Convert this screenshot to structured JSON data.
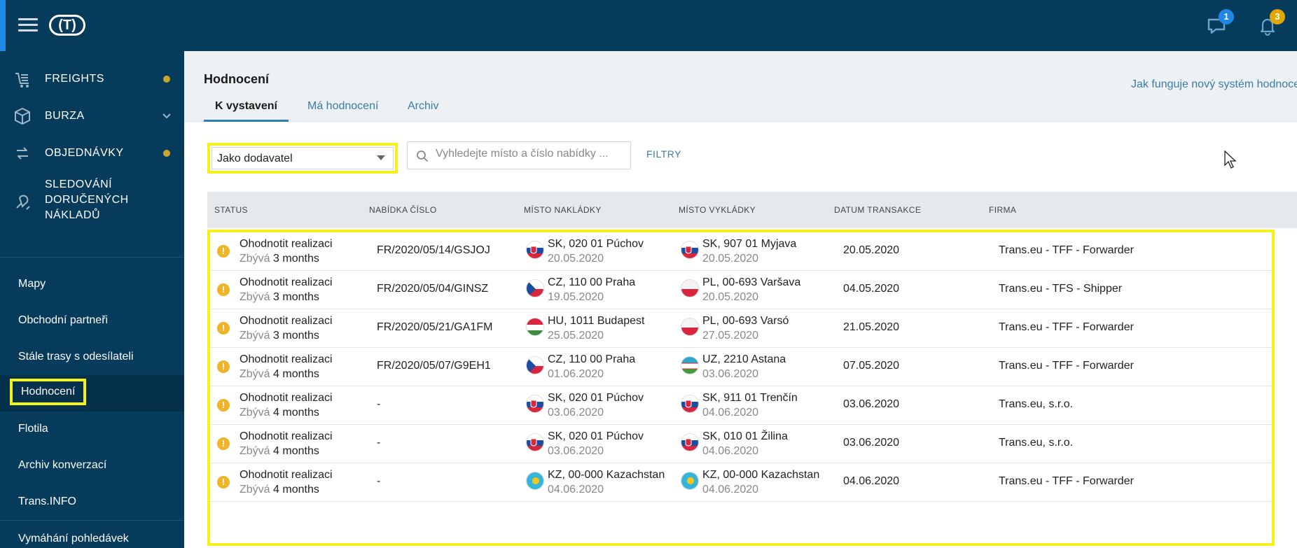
{
  "topbar": {
    "logo_text": "(T)",
    "messages_badge": "1",
    "notifications_badge": "3",
    "colors": {
      "background": "#063b5c",
      "badge_messages": "#1e88e5",
      "badge_notifications": "#e0a800"
    }
  },
  "sidebar": {
    "nav": [
      {
        "label": "FREIGHTS",
        "icon": "freights-icon",
        "indicator": "dot"
      },
      {
        "label": "BURZA",
        "icon": "box-icon",
        "indicator": "chevron"
      },
      {
        "label": "OBJEDNÁVKY",
        "icon": "orders-icon",
        "indicator": "dot"
      },
      {
        "label_lines": [
          "SLEDOVÁNÍ",
          "DORUČENÝCH",
          "NÁKLADŮ"
        ],
        "icon": "tracking-icon"
      }
    ],
    "links": [
      "Mapy",
      "Obchodní partneři",
      "Stále trasy s odesílateli",
      "Hodnocení",
      "Flotila",
      "Archiv konverzací",
      "Trans.INFO",
      "Vymáhání pohledávek"
    ],
    "active_link": "Hodnocení"
  },
  "header": {
    "title": "Hodnocení",
    "help_link": "Jak funguje nový systém hodnocení",
    "tabs": [
      {
        "label": "K vystavení",
        "active": true
      },
      {
        "label": "Má hodnocení",
        "active": false
      },
      {
        "label": "Archiv",
        "active": false
      }
    ]
  },
  "filters": {
    "role_select": "Jako dodavatel",
    "search_placeholder": "Vyhledejte místo a číslo nabídky ...",
    "filters_button": "FILTRY"
  },
  "table": {
    "columns": [
      "STATUS",
      "NABÍDKA ČÍSLO",
      "MÍSTO NAKLÁDKY",
      "MÍSTO VYKLÁDKY",
      "DATUM TRANSAKCE",
      "FIRMA"
    ],
    "remaining_prefix": "Zbývá",
    "rows": [
      {
        "status": "Ohodnotit realizaci",
        "remaining": "3 months",
        "offer": "FR/2020/05/14/GSJOJ",
        "load_flag": "SK",
        "load_place": "SK, 020 01 Púchov",
        "load_date": "20.05.2020",
        "unload_flag": "SK",
        "unload_place": "SK, 907 01 Myjava",
        "unload_date": "20.05.2020",
        "transaction_date": "20.05.2020",
        "company": "Trans.eu - TFF - Forwarder"
      },
      {
        "status": "Ohodnotit realizaci",
        "remaining": "3 months",
        "offer": "FR/2020/05/04/GINSZ",
        "load_flag": "CZ",
        "load_place": "CZ, 110 00 Praha",
        "load_date": "19.05.2020",
        "unload_flag": "PL",
        "unload_place": "PL, 00-693 Varšava",
        "unload_date": "20.05.2020",
        "transaction_date": "04.05.2020",
        "company": "Trans.eu - TFS - Shipper"
      },
      {
        "status": "Ohodnotit realizaci",
        "remaining": "3 months",
        "offer": "FR/2020/05/21/GA1FM",
        "load_flag": "HU",
        "load_place": "HU, 1011 Budapest",
        "load_date": "25.05.2020",
        "unload_flag": "PL",
        "unload_place": "PL, 00-693 Varsó",
        "unload_date": "27.05.2020",
        "transaction_date": "21.05.2020",
        "company": "Trans.eu - TFF - Forwarder"
      },
      {
        "status": "Ohodnotit realizaci",
        "remaining": "4 months",
        "offer": "FR/2020/05/07/G9EH1",
        "load_flag": "CZ",
        "load_place": "CZ, 110 00 Praha",
        "load_date": "01.06.2020",
        "unload_flag": "UZ",
        "unload_place": "UZ, 2210 Astana",
        "unload_date": "03.06.2020",
        "transaction_date": "07.05.2020",
        "company": "Trans.eu - TFF - Forwarder"
      },
      {
        "status": "Ohodnotit realizaci",
        "remaining": "4 months",
        "offer": "-",
        "load_flag": "SK",
        "load_place": "SK, 020 01 Púchov",
        "load_date": "03.06.2020",
        "unload_flag": "SK",
        "unload_place": "SK, 911 01 Trenčín",
        "unload_date": "04.06.2020",
        "transaction_date": "03.06.2020",
        "company": "Trans.eu, s.r.o."
      },
      {
        "status": "Ohodnotit realizaci",
        "remaining": "4 months",
        "offer": "-",
        "load_flag": "SK",
        "load_place": "SK, 020 01 Púchov",
        "load_date": "03.06.2020",
        "unload_flag": "SK",
        "unload_place": "SK, 010 01 Žilina",
        "unload_date": "04.06.2020",
        "transaction_date": "03.06.2020",
        "company": "Trans.eu, s.r.o."
      },
      {
        "status": "Ohodnotit realizaci",
        "remaining": "4 months",
        "offer": "-",
        "load_flag": "KZ",
        "load_place": "KZ, 00-000 Kazachstan",
        "load_date": "04.06.2020",
        "unload_flag": "KZ",
        "unload_place": "KZ, 00-000 Kazachstan",
        "unload_date": "04.06.2020",
        "transaction_date": "04.06.2020",
        "company": "Trans.eu - TFF - Forwarder"
      }
    ]
  }
}
